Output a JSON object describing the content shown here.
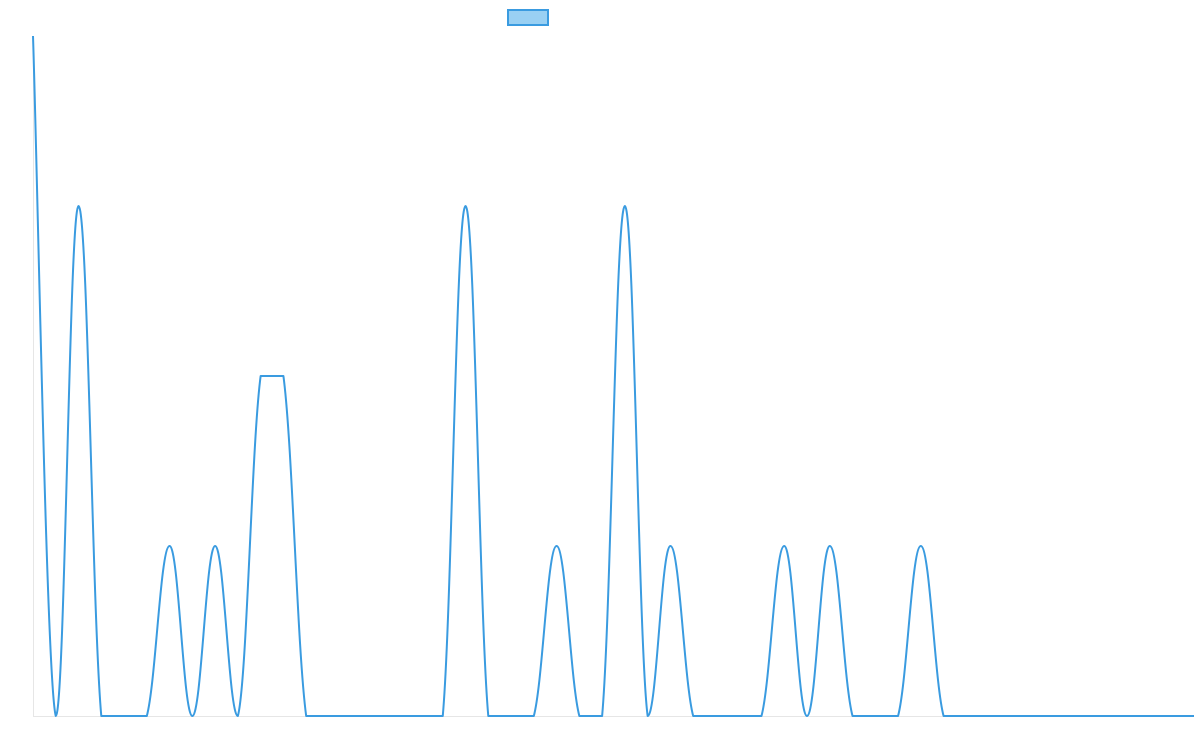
{
  "chart_data": {
    "type": "line",
    "title": "",
    "xlabel": "",
    "ylabel": "",
    "legend": {
      "position": "top-center",
      "entries": [
        {
          "name": "",
          "color": "#3a9be0",
          "fill": "#99d0f3"
        }
      ]
    },
    "grid": false,
    "x": [
      0,
      1,
      2,
      3,
      4,
      5,
      6,
      7,
      8,
      9,
      10,
      11,
      12,
      13,
      14,
      15,
      16,
      17,
      18,
      19,
      20,
      21,
      22,
      23,
      24,
      25,
      26,
      27,
      28,
      29,
      30,
      31,
      32,
      33,
      34,
      35,
      36,
      37,
      38,
      39,
      40,
      41,
      42,
      43,
      44,
      45,
      46,
      47,
      48,
      49,
      50,
      51
    ],
    "series": [
      {
        "name": "",
        "color": "#3a9be0",
        "values": [
          4,
          0,
          3,
          0,
          0,
          0,
          1,
          0,
          1,
          0,
          2,
          2,
          0,
          0,
          0,
          0,
          0,
          0,
          0,
          3,
          0,
          0,
          0,
          1,
          0,
          0,
          3,
          0,
          1,
          0,
          0,
          0,
          0,
          1,
          0,
          1,
          0,
          0,
          0,
          1,
          0,
          0,
          0,
          0,
          0,
          0,
          0,
          0,
          0,
          0,
          0,
          0
        ]
      }
    ],
    "ylim": [
      0,
      4
    ],
    "xlim": [
      0,
      51
    ]
  }
}
